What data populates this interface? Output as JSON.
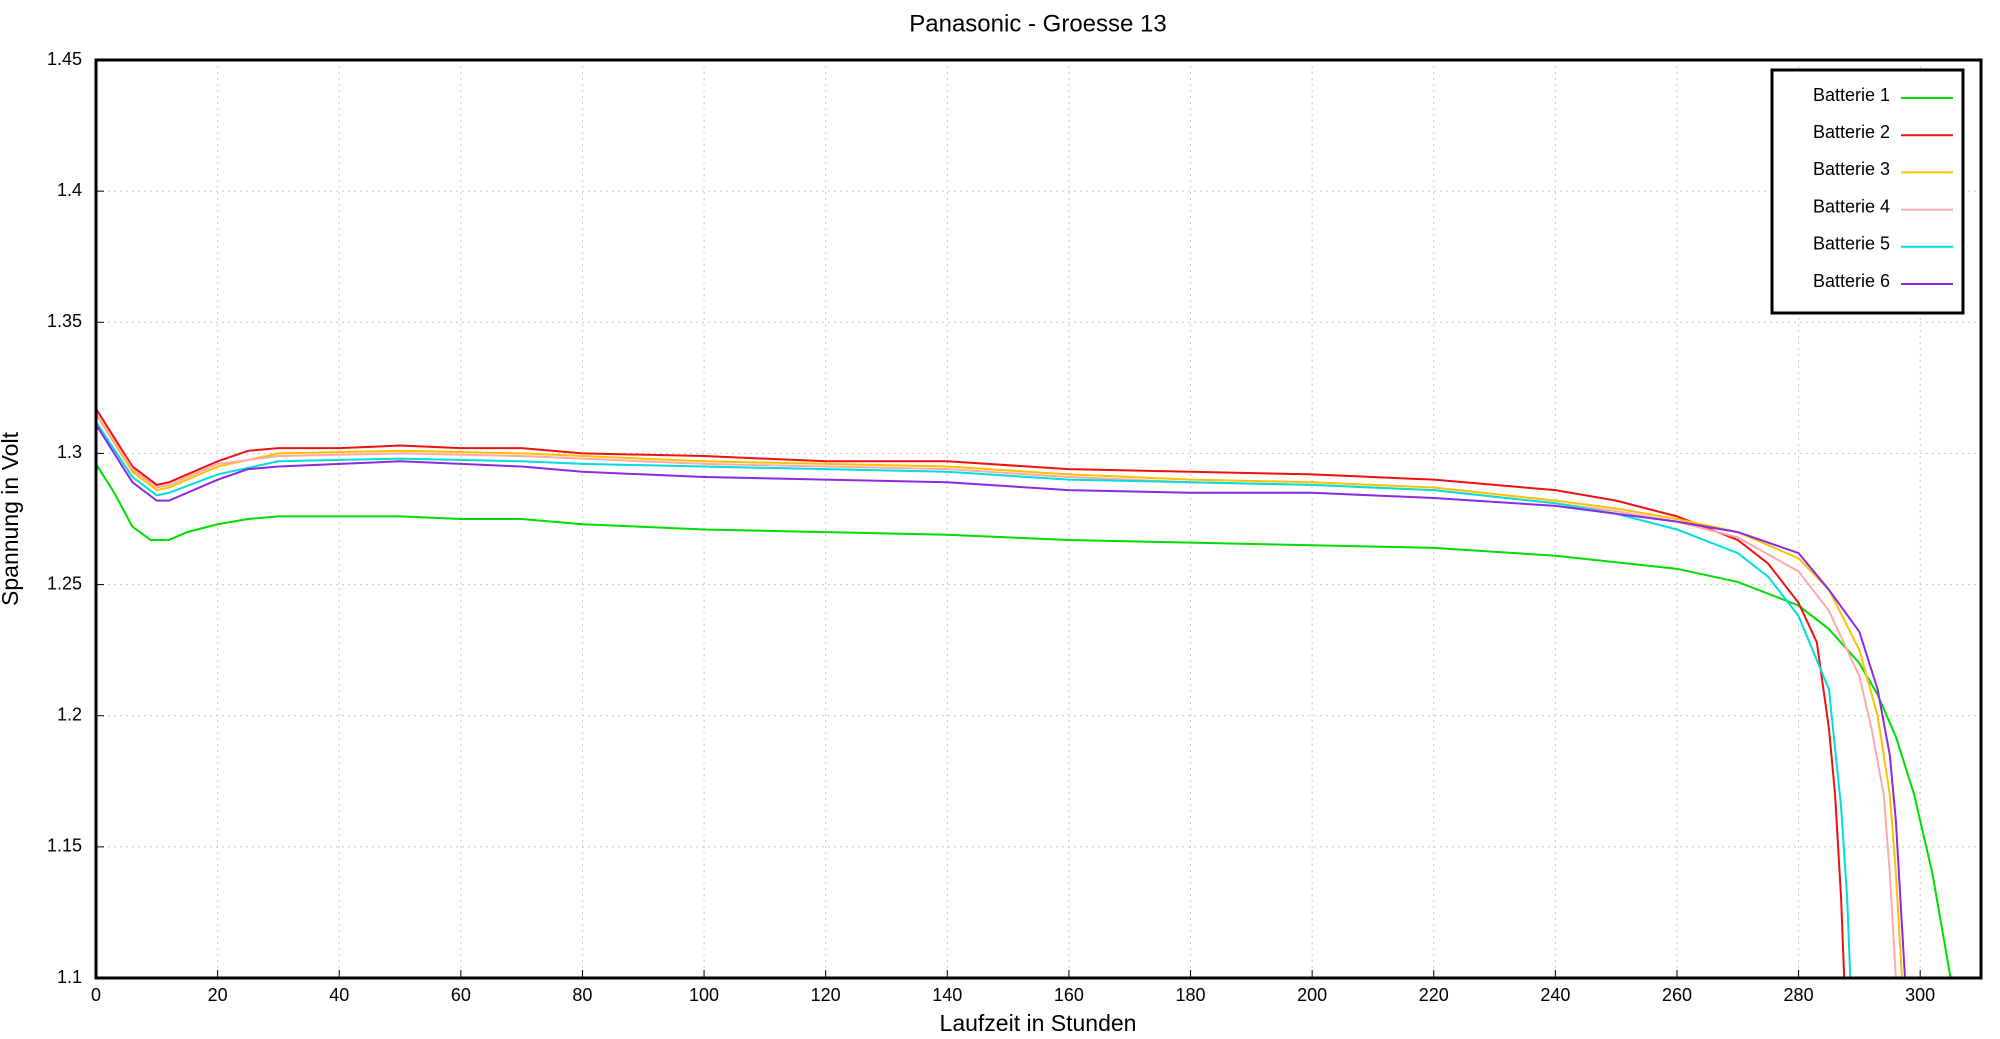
{
  "chart_data": {
    "type": "line",
    "title": "Panasonic - Groesse 13",
    "xlabel": "Laufzeit in Stunden",
    "ylabel": "Spannung in Volt",
    "xlim": [
      0,
      310
    ],
    "ylim": [
      1.1,
      1.45
    ],
    "xticks": [
      0,
      20,
      40,
      60,
      80,
      100,
      120,
      140,
      160,
      180,
      200,
      220,
      240,
      260,
      280,
      300
    ],
    "yticks": [
      1.1,
      1.15,
      1.2,
      1.25,
      1.3,
      1.35,
      1.4,
      1.45
    ],
    "grid": true,
    "legend": "top-right",
    "series": [
      {
        "name": "Batterie 1",
        "color": "#00dd00",
        "x": [
          0,
          3,
          6,
          9,
          12,
          15,
          20,
          25,
          30,
          50,
          60,
          70,
          80,
          100,
          120,
          140,
          160,
          180,
          200,
          220,
          240,
          260,
          270,
          280,
          285,
          290,
          293,
          296,
          299,
          302,
          305
        ],
        "values": [
          1.296,
          1.285,
          1.272,
          1.267,
          1.267,
          1.27,
          1.273,
          1.275,
          1.276,
          1.276,
          1.275,
          1.275,
          1.273,
          1.271,
          1.27,
          1.269,
          1.267,
          1.266,
          1.265,
          1.264,
          1.261,
          1.256,
          1.251,
          1.242,
          1.233,
          1.22,
          1.208,
          1.192,
          1.17,
          1.14,
          1.1
        ]
      },
      {
        "name": "Batterie 2",
        "color": "#ee1111",
        "x": [
          0,
          6,
          10,
          12,
          15,
          20,
          25,
          30,
          40,
          50,
          60,
          70,
          80,
          100,
          120,
          140,
          160,
          180,
          200,
          220,
          240,
          250,
          260,
          270,
          275,
          280,
          283,
          285,
          286,
          287,
          287.5
        ],
        "values": [
          1.317,
          1.295,
          1.288,
          1.289,
          1.292,
          1.297,
          1.301,
          1.302,
          1.302,
          1.303,
          1.302,
          1.302,
          1.3,
          1.299,
          1.297,
          1.297,
          1.294,
          1.293,
          1.292,
          1.29,
          1.286,
          1.282,
          1.276,
          1.267,
          1.258,
          1.243,
          1.228,
          1.195,
          1.17,
          1.13,
          1.1
        ]
      },
      {
        "name": "Batterie 3",
        "color": "#ffc000",
        "x": [
          0,
          6,
          10,
          12,
          20,
          30,
          50,
          70,
          80,
          100,
          120,
          140,
          160,
          180,
          200,
          220,
          240,
          250,
          260,
          270,
          280,
          285,
          290,
          293,
          295,
          296,
          297
        ],
        "values": [
          1.315,
          1.293,
          1.286,
          1.287,
          1.295,
          1.3,
          1.301,
          1.3,
          1.299,
          1.297,
          1.296,
          1.295,
          1.292,
          1.29,
          1.289,
          1.287,
          1.282,
          1.279,
          1.275,
          1.27,
          1.26,
          1.248,
          1.225,
          1.2,
          1.17,
          1.14,
          1.1
        ]
      },
      {
        "name": "Batterie 4",
        "color": "#ffaaaa",
        "x": [
          0,
          6,
          10,
          12,
          20,
          30,
          50,
          70,
          80,
          100,
          120,
          140,
          160,
          180,
          200,
          220,
          240,
          250,
          260,
          270,
          280,
          285,
          290,
          292,
          294,
          295,
          296
        ],
        "values": [
          1.315,
          1.294,
          1.287,
          1.288,
          1.296,
          1.299,
          1.3,
          1.299,
          1.298,
          1.296,
          1.295,
          1.294,
          1.291,
          1.289,
          1.288,
          1.286,
          1.281,
          1.278,
          1.274,
          1.268,
          1.255,
          1.24,
          1.215,
          1.195,
          1.17,
          1.14,
          1.1
        ]
      },
      {
        "name": "Batterie 5",
        "color": "#00dddd",
        "x": [
          0,
          6,
          10,
          12,
          20,
          30,
          50,
          70,
          80,
          100,
          120,
          140,
          160,
          180,
          200,
          220,
          240,
          250,
          260,
          270,
          275,
          280,
          285,
          287,
          288,
          288.5
        ],
        "values": [
          1.312,
          1.291,
          1.284,
          1.285,
          1.292,
          1.297,
          1.298,
          1.297,
          1.296,
          1.295,
          1.294,
          1.293,
          1.29,
          1.289,
          1.288,
          1.286,
          1.281,
          1.277,
          1.271,
          1.262,
          1.253,
          1.238,
          1.21,
          1.165,
          1.13,
          1.1
        ]
      },
      {
        "name": "Batterie 6",
        "color": "#8a2be2",
        "x": [
          0,
          6,
          10,
          12,
          20,
          25,
          30,
          50,
          60,
          70,
          80,
          100,
          120,
          140,
          160,
          180,
          200,
          220,
          240,
          250,
          260,
          270,
          280,
          285,
          290,
          293,
          295,
          296,
          297,
          297.5
        ],
        "values": [
          1.311,
          1.289,
          1.282,
          1.282,
          1.29,
          1.294,
          1.295,
          1.297,
          1.296,
          1.295,
          1.293,
          1.291,
          1.29,
          1.289,
          1.286,
          1.285,
          1.285,
          1.283,
          1.28,
          1.277,
          1.274,
          1.27,
          1.262,
          1.248,
          1.232,
          1.21,
          1.185,
          1.16,
          1.12,
          1.1
        ]
      }
    ]
  }
}
